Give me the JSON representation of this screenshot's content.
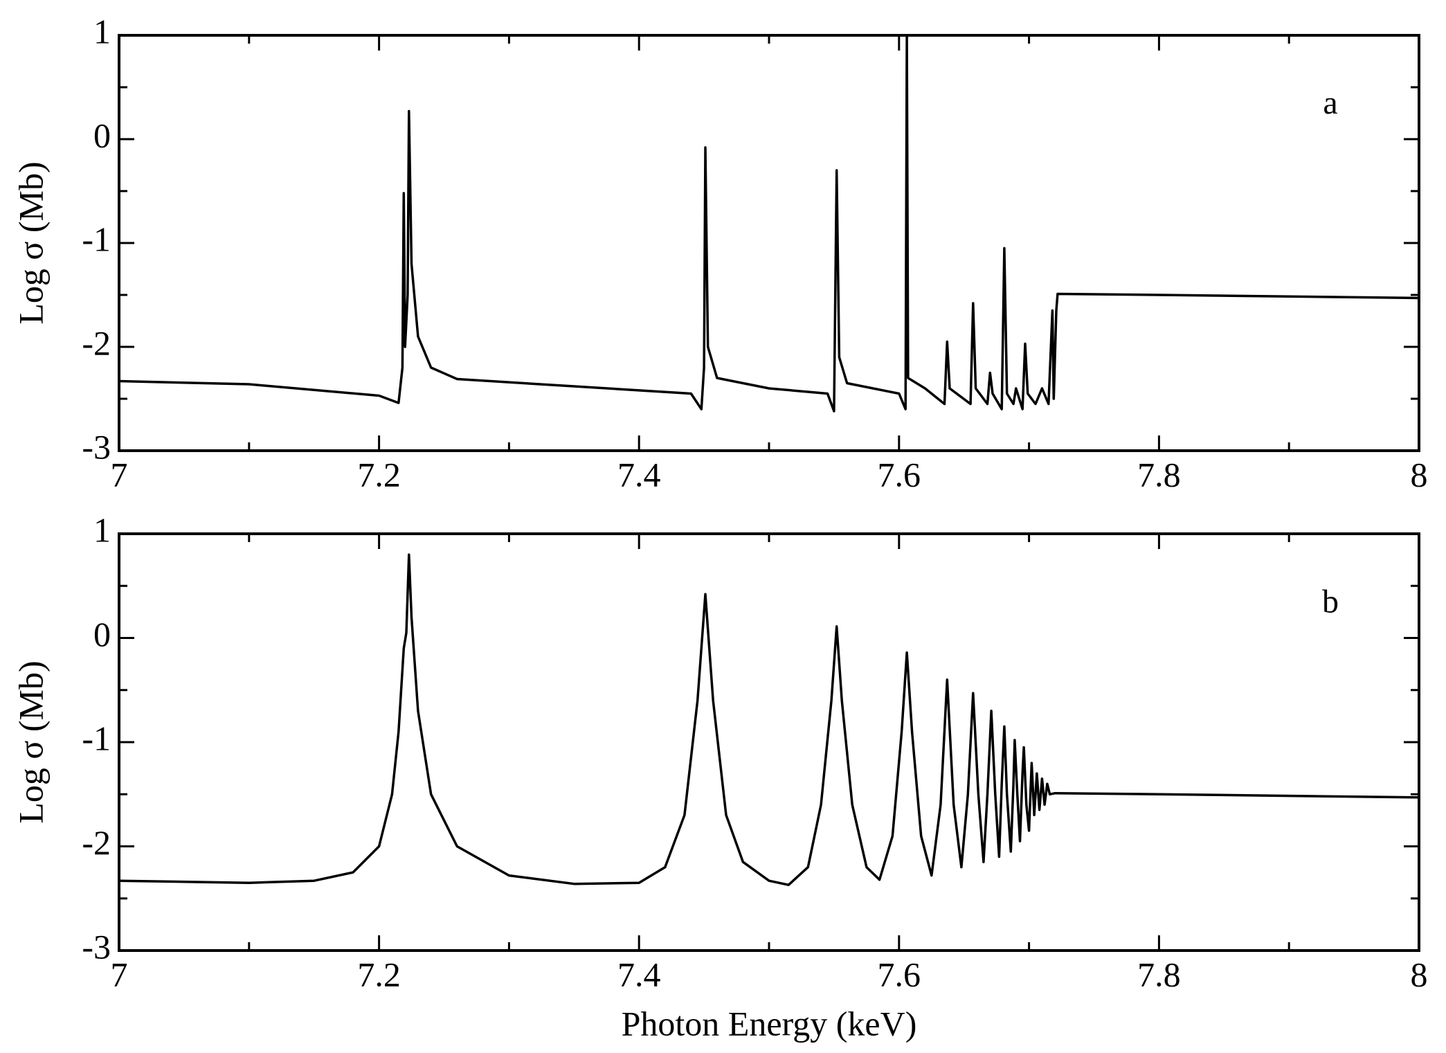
{
  "chart_data": [
    {
      "type": "line",
      "annotation": "a",
      "ylabel": "Log σ (Mb)",
      "color": "#000000",
      "xlim": [
        7,
        8
      ],
      "ylim": [
        -3,
        1
      ],
      "xticks": [
        7,
        7.2,
        7.4,
        7.6,
        7.8,
        8
      ],
      "yticks": [
        -3,
        -2,
        -1,
        0,
        1
      ],
      "xminorticks": [
        7.1,
        7.3,
        7.5,
        7.7,
        7.9
      ],
      "yminorticks": [
        -2.5,
        -1.5,
        -0.5,
        0.5
      ],
      "x": [
        7.0,
        7.1,
        7.2,
        7.215,
        7.218,
        7.219,
        7.22,
        7.222,
        7.223,
        7.225,
        7.23,
        7.24,
        7.26,
        7.35,
        7.44,
        7.448,
        7.45,
        7.451,
        7.453,
        7.46,
        7.5,
        7.545,
        7.55,
        7.552,
        7.554,
        7.56,
        7.6,
        7.605,
        7.606,
        7.607,
        7.62,
        7.635,
        7.637,
        7.639,
        7.655,
        7.657,
        7.659,
        7.668,
        7.67,
        7.672,
        7.679,
        7.681,
        7.683,
        7.688,
        7.69,
        7.695,
        7.697,
        7.699,
        7.705,
        7.71,
        7.715,
        7.718,
        7.719,
        7.721,
        7.722,
        7.8,
        8.0
      ],
      "values": [
        -2.33,
        -2.36,
        -2.47,
        -2.54,
        -2.2,
        -0.52,
        -2.0,
        -1.5,
        0.27,
        -1.2,
        -1.9,
        -2.2,
        -2.31,
        -2.38,
        -2.45,
        -2.6,
        -2.2,
        -0.08,
        -2.0,
        -2.3,
        -2.4,
        -2.45,
        -2.62,
        -0.3,
        -2.1,
        -2.35,
        -2.45,
        -2.6,
        1.0,
        -2.3,
        -2.4,
        -2.55,
        -1.95,
        -2.4,
        -2.55,
        -1.58,
        -2.4,
        -2.55,
        -2.25,
        -2.45,
        -2.6,
        -1.05,
        -2.45,
        -2.55,
        -2.4,
        -2.6,
        -1.97,
        -2.45,
        -2.55,
        -2.4,
        -2.55,
        -1.65,
        -2.5,
        -1.65,
        -1.49,
        -1.5,
        -1.53
      ]
    },
    {
      "type": "line",
      "annotation": "b",
      "ylabel": "Log σ (Mb)",
      "xlabel": "Photon Energy (keV)",
      "color": "#000000",
      "xlim": [
        7,
        8
      ],
      "ylim": [
        -3,
        1
      ],
      "xticks": [
        7,
        7.2,
        7.4,
        7.6,
        7.8,
        8
      ],
      "yticks": [
        -3,
        -2,
        -1,
        0,
        1
      ],
      "xminorticks": [
        7.1,
        7.3,
        7.5,
        7.7,
        7.9
      ],
      "yminorticks": [
        -2.5,
        -1.5,
        -0.5,
        0.5
      ],
      "x": [
        7.0,
        7.1,
        7.15,
        7.18,
        7.2,
        7.21,
        7.215,
        7.219,
        7.221,
        7.223,
        7.225,
        7.23,
        7.24,
        7.26,
        7.3,
        7.35,
        7.4,
        7.42,
        7.435,
        7.445,
        7.451,
        7.457,
        7.467,
        7.48,
        7.5,
        7.515,
        7.53,
        7.54,
        7.548,
        7.552,
        7.556,
        7.564,
        7.575,
        7.585,
        7.595,
        7.602,
        7.606,
        7.61,
        7.617,
        7.625,
        7.632,
        7.637,
        7.642,
        7.648,
        7.653,
        7.657,
        7.661,
        7.665,
        7.668,
        7.671,
        7.674,
        7.677,
        7.679,
        7.681,
        7.683,
        7.686,
        7.688,
        7.689,
        7.691,
        7.693,
        7.695,
        7.696,
        7.698,
        7.7,
        7.702,
        7.704,
        7.706,
        7.708,
        7.71,
        7.712,
        7.714,
        7.716,
        7.72,
        7.8,
        8.0
      ],
      "values": [
        -2.33,
        -2.35,
        -2.33,
        -2.25,
        -2.0,
        -1.5,
        -0.9,
        -0.1,
        0.05,
        0.8,
        0.2,
        -0.7,
        -1.5,
        -2.0,
        -2.28,
        -2.36,
        -2.35,
        -2.2,
        -1.7,
        -0.6,
        0.42,
        -0.6,
        -1.7,
        -2.15,
        -2.33,
        -2.37,
        -2.2,
        -1.6,
        -0.6,
        0.11,
        -0.6,
        -1.6,
        -2.2,
        -2.32,
        -1.9,
        -0.9,
        -0.14,
        -0.9,
        -1.9,
        -2.28,
        -1.6,
        -0.4,
        -1.6,
        -2.2,
        -1.5,
        -0.53,
        -1.5,
        -2.15,
        -1.5,
        -0.7,
        -1.5,
        -2.1,
        -1.4,
        -0.85,
        -1.5,
        -2.05,
        -1.4,
        -0.98,
        -1.5,
        -1.95,
        -1.3,
        -1.05,
        -1.6,
        -1.85,
        -1.2,
        -1.7,
        -1.3,
        -1.65,
        -1.35,
        -1.6,
        -1.4,
        -1.5,
        -1.49,
        -1.5,
        -1.53
      ]
    }
  ]
}
